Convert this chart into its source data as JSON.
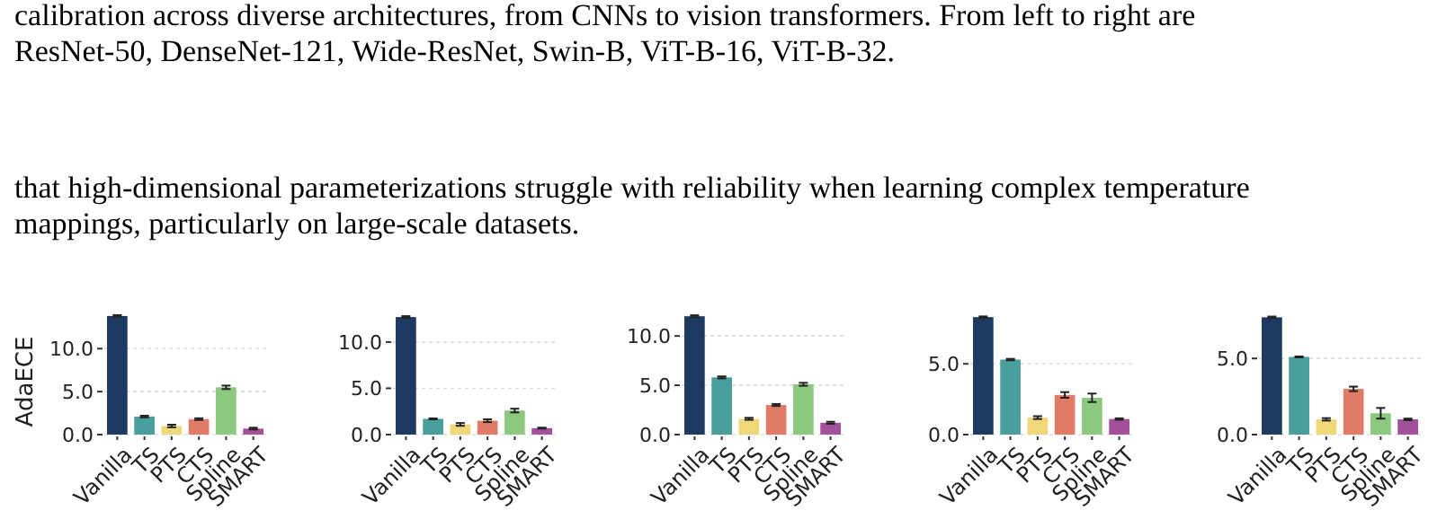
{
  "chart_data": [
    {
      "type": "bar",
      "ylabel": "AdaECE",
      "annotations": [
        "calibration across diverse architectures, from CNNs to vision transformers. From left to right are",
        "ResNet-50, DenseNet-121, Wide-ResNet, Swin-B, ViT-B-16, ViT-B-32.",
        "that high-dimensional parameterizations struggle with reliability when learning complex temperature",
        "mappings, particularly on large-scale datasets."
      ],
      "categories": [
        "Vanilla",
        "TS",
        "PTS",
        "CTS",
        "Spline",
        "SMART"
      ],
      "values": [
        13.8,
        2.1,
        1.0,
        1.8,
        5.5,
        0.7
      ],
      "errors": [
        0.1,
        0.1,
        0.15,
        0.1,
        0.2,
        0.1
      ],
      "colors": [
        "#1f3a60",
        "#4a9e9c",
        "#f0d77a",
        "#e07b65",
        "#8cc97f",
        "#a2509a"
      ],
      "ylim": [
        0,
        14
      ],
      "yticks": [
        {
          "value": 0,
          "label": "0.0"
        },
        {
          "value": 5,
          "label": "5.0"
        },
        {
          "value": 10,
          "label": "10.0"
        }
      ],
      "grid": "y"
    },
    {
      "type": "bar",
      "categories": [
        "Vanilla",
        "TS",
        "PTS",
        "CTS",
        "Spline",
        "SMART"
      ],
      "values": [
        12.7,
        1.7,
        1.1,
        1.5,
        2.6,
        0.7
      ],
      "errors": [
        0.1,
        0.05,
        0.15,
        0.15,
        0.2,
        0.05
      ],
      "colors": [
        "#1f3a60",
        "#4a9e9c",
        "#f0d77a",
        "#e07b65",
        "#8cc97f",
        "#a2509a"
      ],
      "ylim": [
        0,
        13
      ],
      "yticks": [
        {
          "value": 0,
          "label": "0.0"
        },
        {
          "value": 5,
          "label": "5.0"
        },
        {
          "value": 10,
          "label": "10.0"
        }
      ],
      "grid": "y"
    },
    {
      "type": "bar",
      "categories": [
        "Vanilla",
        "TS",
        "PTS",
        "CTS",
        "Spline",
        "SMART"
      ],
      "values": [
        12.0,
        5.8,
        1.6,
        3.0,
        5.1,
        1.2
      ],
      "errors": [
        0.1,
        0.1,
        0.1,
        0.1,
        0.15,
        0.1
      ],
      "colors": [
        "#1f3a60",
        "#4a9e9c",
        "#f0d77a",
        "#e07b65",
        "#8cc97f",
        "#a2509a"
      ],
      "ylim": [
        0,
        12.2
      ],
      "yticks": [
        {
          "value": 0,
          "label": "0.0"
        },
        {
          "value": 5,
          "label": "5.0"
        },
        {
          "value": 10,
          "label": "10.0"
        }
      ],
      "grid": "y"
    },
    {
      "type": "bar",
      "categories": [
        "Vanilla",
        "TS",
        "PTS",
        "CTS",
        "Spline",
        "SMART"
      ],
      "values": [
        8.3,
        5.3,
        1.2,
        2.8,
        2.6,
        1.1
      ],
      "errors": [
        0.05,
        0.05,
        0.1,
        0.2,
        0.3,
        0.05
      ],
      "colors": [
        "#1f3a60",
        "#4a9e9c",
        "#f0d77a",
        "#e07b65",
        "#8cc97f",
        "#a2509a"
      ],
      "ylim": [
        0,
        8.5
      ],
      "yticks": [
        {
          "value": 0,
          "label": "0.0"
        },
        {
          "value": 5,
          "label": "5.0"
        }
      ],
      "grid": "y"
    },
    {
      "type": "bar",
      "categories": [
        "Vanilla",
        "TS",
        "PTS",
        "CTS",
        "Spline",
        "SMART"
      ],
      "values": [
        7.7,
        5.1,
        1.0,
        3.0,
        1.4,
        1.0
      ],
      "errors": [
        0.05,
        0.03,
        0.08,
        0.15,
        0.35,
        0.05
      ],
      "colors": [
        "#1f3a60",
        "#4a9e9c",
        "#f0d77a",
        "#e07b65",
        "#8cc97f",
        "#a2509a"
      ],
      "ylim": [
        0,
        7.9
      ],
      "yticks": [
        {
          "value": 0,
          "label": "0.0"
        },
        {
          "value": 5,
          "label": "5.0"
        }
      ],
      "grid": "y"
    }
  ]
}
